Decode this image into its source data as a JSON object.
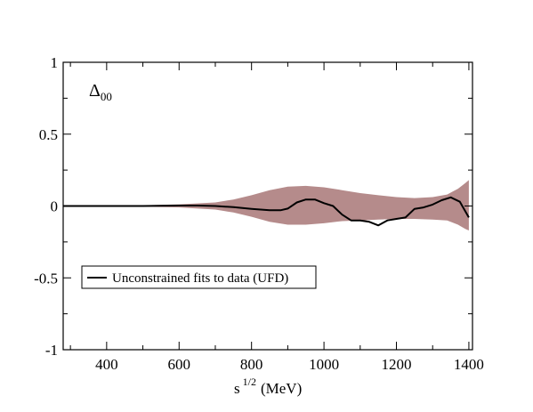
{
  "chart_data": {
    "type": "line",
    "xlabel": "s",
    "xlabel_sup": "1/2",
    "xlabel_unit": "(MeV)",
    "ylabel": "",
    "xlim": [
      280,
      1410
    ],
    "ylim": [
      -1,
      1
    ],
    "x_ticks": [
      400,
      600,
      800,
      1000,
      1200,
      1400
    ],
    "x_tick_labels": [
      "400",
      "600",
      "800",
      "1000",
      "1200",
      "1400"
    ],
    "y_ticks": [
      -1,
      -0.5,
      0,
      0.5,
      1
    ],
    "y_tick_labels": [
      "-1",
      "-0.5",
      "0",
      "0.5",
      "1"
    ],
    "grid": false,
    "annotation": {
      "main": "Δ",
      "sub": "00"
    },
    "legend": {
      "placement": "bottom-left"
    },
    "series": [
      {
        "name": "Unconstrained fits to data (UFD)",
        "color": "#000000",
        "x": [
          280,
          400,
          500,
          600,
          650,
          700,
          750,
          800,
          850,
          880,
          900,
          925,
          950,
          975,
          1000,
          1025,
          1050,
          1075,
          1100,
          1125,
          1150,
          1175,
          1200,
          1225,
          1250,
          1275,
          1300,
          1325,
          1350,
          1375,
          1400
        ],
        "y": [
          0.0,
          0.0,
          0.0,
          0.003,
          0.003,
          0.0,
          -0.008,
          -0.02,
          -0.03,
          -0.03,
          -0.018,
          0.025,
          0.045,
          0.045,
          0.02,
          0.0,
          -0.06,
          -0.1,
          -0.1,
          -0.11,
          -0.135,
          -0.1,
          -0.09,
          -0.08,
          -0.02,
          -0.01,
          0.01,
          0.04,
          0.06,
          0.03,
          -0.08
        ]
      }
    ],
    "band": {
      "color": "#b58b8b",
      "x": [
        280,
        400,
        500,
        600,
        700,
        750,
        800,
        850,
        900,
        950,
        1000,
        1050,
        1100,
        1150,
        1200,
        1250,
        1300,
        1340,
        1370,
        1390,
        1400
      ],
      "upper": [
        0.0,
        0.002,
        0.005,
        0.012,
        0.025,
        0.045,
        0.075,
        0.11,
        0.135,
        0.14,
        0.13,
        0.11,
        0.09,
        0.075,
        0.062,
        0.055,
        0.062,
        0.08,
        0.12,
        0.16,
        0.18
      ],
      "lower": [
        0.0,
        -0.002,
        -0.005,
        -0.01,
        -0.025,
        -0.045,
        -0.075,
        -0.11,
        -0.13,
        -0.13,
        -0.12,
        -0.105,
        -0.1,
        -0.095,
        -0.09,
        -0.09,
        -0.095,
        -0.1,
        -0.13,
        -0.16,
        -0.17
      ]
    }
  }
}
